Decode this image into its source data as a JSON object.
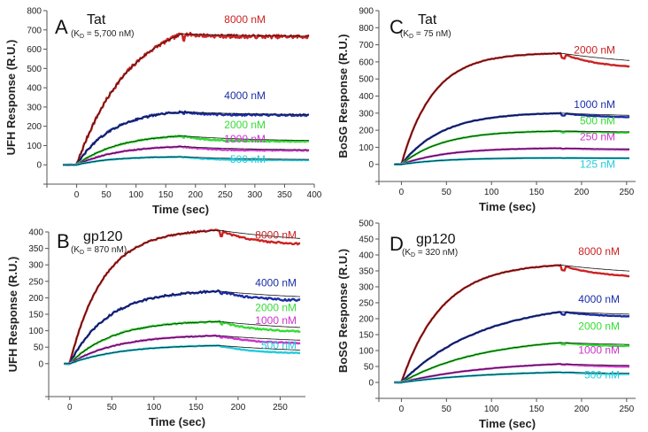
{
  "chart_data": [
    {
      "type": "line",
      "panel": "A",
      "title": "Tat",
      "kd_prefix": "(K",
      "kd_sub": "D",
      "kd_value": " = 5,700 nM)",
      "xlabel": "Time (sec)",
      "ylabel": "UFH Response (R.U.)",
      "xlim": [
        -50,
        400
      ],
      "ylim": [
        -100,
        800
      ],
      "xticks": [
        0,
        50,
        100,
        150,
        200,
        250,
        300,
        350,
        400
      ],
      "yticks": [
        0,
        100,
        200,
        300,
        400,
        500,
        600,
        700,
        800
      ],
      "injection_end": 178,
      "series": [
        {
          "name": "8000 nM",
          "color": "#cc2222",
          "plateau": 680,
          "end": 665,
          "rise": 90,
          "wobble": 18
        },
        {
          "name": "4000 nM",
          "color": "#1a2ea8",
          "plateau": 275,
          "end": 258,
          "rise": 60,
          "wobble": 10
        },
        {
          "name": "2000 nM",
          "color": "#33dd33",
          "plateau": 150,
          "end": 122,
          "rise": 70,
          "wobble": 6
        },
        {
          "name": "1000 nM",
          "color": "#cc33cc",
          "plateau": 95,
          "end": 75,
          "rise": 70,
          "wobble": 5
        },
        {
          "name": "500 nM",
          "color": "#22ccdd",
          "plateau": 42,
          "end": 25,
          "rise": 60,
          "wobble": 3
        }
      ]
    },
    {
      "type": "line",
      "panel": "C",
      "title": "Tat",
      "kd_prefix": "(K",
      "kd_sub": "D",
      "kd_value": " = 75 nM)",
      "xlabel": "Time (sec)",
      "ylabel": "BoSG Response (R.U.)",
      "xlim": [
        -25,
        260
      ],
      "ylim": [
        -100,
        900
      ],
      "xticks": [
        0,
        50,
        100,
        150,
        200,
        250
      ],
      "yticks": [
        0,
        100,
        200,
        300,
        400,
        500,
        600,
        700,
        800,
        900
      ],
      "injection_end": 178,
      "series": [
        {
          "name": "2000 nM",
          "color": "#cc2222",
          "plateau": 650,
          "end": 560,
          "rise": 35,
          "wobble": 4
        },
        {
          "name": "1000 nM",
          "color": "#1a2ea8",
          "plateau": 300,
          "end": 272,
          "rise": 45,
          "wobble": 3
        },
        {
          "name": "500 nM",
          "color": "#33dd33",
          "plateau": 195,
          "end": 185,
          "rise": 45,
          "wobble": 3
        },
        {
          "name": "250 nM",
          "color": "#cc33cc",
          "plateau": 95,
          "end": 85,
          "rise": 50,
          "wobble": 2
        },
        {
          "name": "125 nM",
          "color": "#22ccdd",
          "plateau": 38,
          "end": 35,
          "rise": 50,
          "wobble": 1
        }
      ]
    },
    {
      "type": "line",
      "panel": "B",
      "title": "gp120",
      "kd_prefix": "(K",
      "kd_sub": "D",
      "kd_value": " = 870 nM)",
      "xlabel": "Time (sec)",
      "ylabel": "UFH Response (R.U.)",
      "xlim": [
        -25,
        280
      ],
      "ylim": [
        -100,
        400
      ],
      "xticks": [
        0,
        50,
        100,
        150,
        200,
        250
      ],
      "yticks": [
        0,
        50,
        100,
        150,
        200,
        250,
        300,
        350,
        400
      ],
      "injection_end": 178,
      "series": [
        {
          "name": "8000 nM",
          "color": "#cc2222",
          "plateau": 405,
          "end": 360,
          "rise": 40,
          "wobble": 5
        },
        {
          "name": "4000 nM",
          "color": "#1a2ea8",
          "plateau": 220,
          "end": 190,
          "rise": 45,
          "wobble": 6
        },
        {
          "name": "2000 nM",
          "color": "#33dd33",
          "plateau": 128,
          "end": 95,
          "rise": 50,
          "wobble": 4
        },
        {
          "name": "1000 nM",
          "color": "#cc33cc",
          "plateau": 85,
          "end": 60,
          "rise": 55,
          "wobble": 3
        },
        {
          "name": "500 nM",
          "color": "#22ccdd",
          "plateau": 55,
          "end": 30,
          "rise": 60,
          "wobble": 2
        }
      ]
    },
    {
      "type": "line",
      "panel": "D",
      "title": "gp120",
      "kd_prefix": "(K",
      "kd_sub": "D",
      "kd_value": " = 320 nM)",
      "xlabel": "Time (sec)",
      "ylabel": "BoSG Response (R.U.)",
      "xlim": [
        -25,
        260
      ],
      "ylim": [
        -50,
        500
      ],
      "xticks": [
        0,
        50,
        100,
        150,
        200,
        250
      ],
      "yticks": [
        0,
        50,
        100,
        150,
        200,
        250,
        300,
        350,
        400,
        450,
        500
      ],
      "injection_end": 178,
      "series": [
        {
          "name": "8000 nM",
          "color": "#cc2222",
          "plateau": 368,
          "end": 328,
          "rise": 45,
          "wobble": 2
        },
        {
          "name": "4000 nM",
          "color": "#1a2ea8",
          "plateau": 222,
          "end": 205,
          "rise": 90,
          "wobble": 2
        },
        {
          "name": "2000 nM",
          "color": "#33dd33",
          "plateau": 125,
          "end": 112,
          "rise": 90,
          "wobble": 2
        },
        {
          "name": "1000 nM",
          "color": "#cc33cc",
          "plateau": 58,
          "end": 48,
          "rise": 100,
          "wobble": 1
        },
        {
          "name": "500 nM",
          "color": "#22ccdd",
          "plateau": 32,
          "end": 25,
          "rise": 100,
          "wobble": 1
        }
      ]
    }
  ]
}
